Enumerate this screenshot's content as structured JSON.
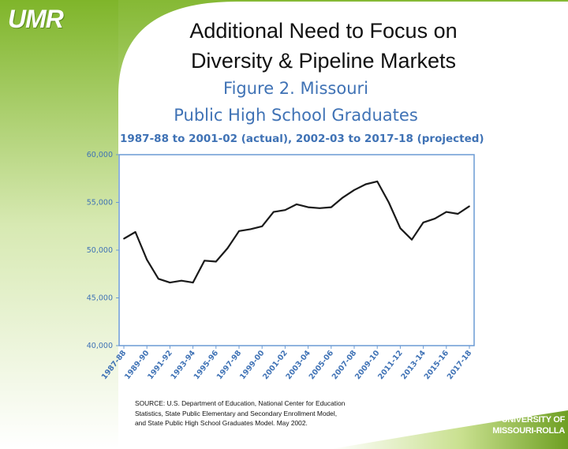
{
  "logo": "UMR",
  "slide": {
    "title_line1": "Additional Need to Focus on",
    "title_line2": "Diversity & Pipeline Markets"
  },
  "figure": {
    "title_line1": "Figure 2.  Missouri",
    "title_line2": "Public High School Graduates",
    "subtitle": "1987-88 to 2001-02 (actual), 2002-03 to 2017-18 (projected)"
  },
  "chart_data": {
    "type": "line",
    "title": "Figure 2. Missouri Public High School Graduates",
    "subtitle": "1987-88 to 2001-02 (actual), 2002-03 to 2017-18 (projected)",
    "xlabel": "",
    "ylabel": "",
    "ylim": [
      40000,
      60000
    ],
    "yticks": [
      40000,
      45000,
      50000,
      55000,
      60000
    ],
    "ytick_labels": [
      "40,000",
      "45,000",
      "50,000",
      "55,000",
      "60,000"
    ],
    "xtick_labels": [
      "1987-88",
      "1989-90",
      "1991-92",
      "1993-94",
      "1995-96",
      "1997-98",
      "1999-00",
      "2001-02",
      "2003-04",
      "2005-06",
      "2007-08",
      "2009-10",
      "2011-12",
      "2013-14",
      "2015-16",
      "2017-18"
    ],
    "grid": false,
    "series": [
      {
        "name": "Public High School Graduates",
        "color": "#1a1a1a",
        "x": [
          "1987-88",
          "1988-89",
          "1989-90",
          "1990-91",
          "1991-92",
          "1992-93",
          "1993-94",
          "1994-95",
          "1995-96",
          "1996-97",
          "1997-98",
          "1998-99",
          "1999-00",
          "2000-01",
          "2001-02",
          "2002-03",
          "2003-04",
          "2004-05",
          "2005-06",
          "2006-07",
          "2007-08",
          "2008-09",
          "2009-10",
          "2010-11",
          "2011-12",
          "2012-13",
          "2013-14",
          "2014-15",
          "2015-16",
          "2016-17",
          "2017-18"
        ],
        "values": [
          51200,
          51900,
          49000,
          47000,
          46600,
          46800,
          46600,
          48900,
          48800,
          50200,
          52000,
          52200,
          52500,
          54000,
          54200,
          54800,
          54500,
          54400,
          54500,
          55500,
          56300,
          56900,
          57200,
          55000,
          52300,
          51100,
          52900,
          53300,
          54000,
          53800,
          54600
        ]
      }
    ]
  },
  "source": {
    "line1": "SOURCE: U.S. Department of Education, National Center for Education",
    "line2": "Statistics, State Public Elementary and Secondary Enrollment Model,",
    "line3": "and State Public High School Graduates Model. May 2002."
  },
  "university": {
    "line1": "UNIVERSITY OF",
    "line2": "MISSOURI-ROLLA"
  }
}
